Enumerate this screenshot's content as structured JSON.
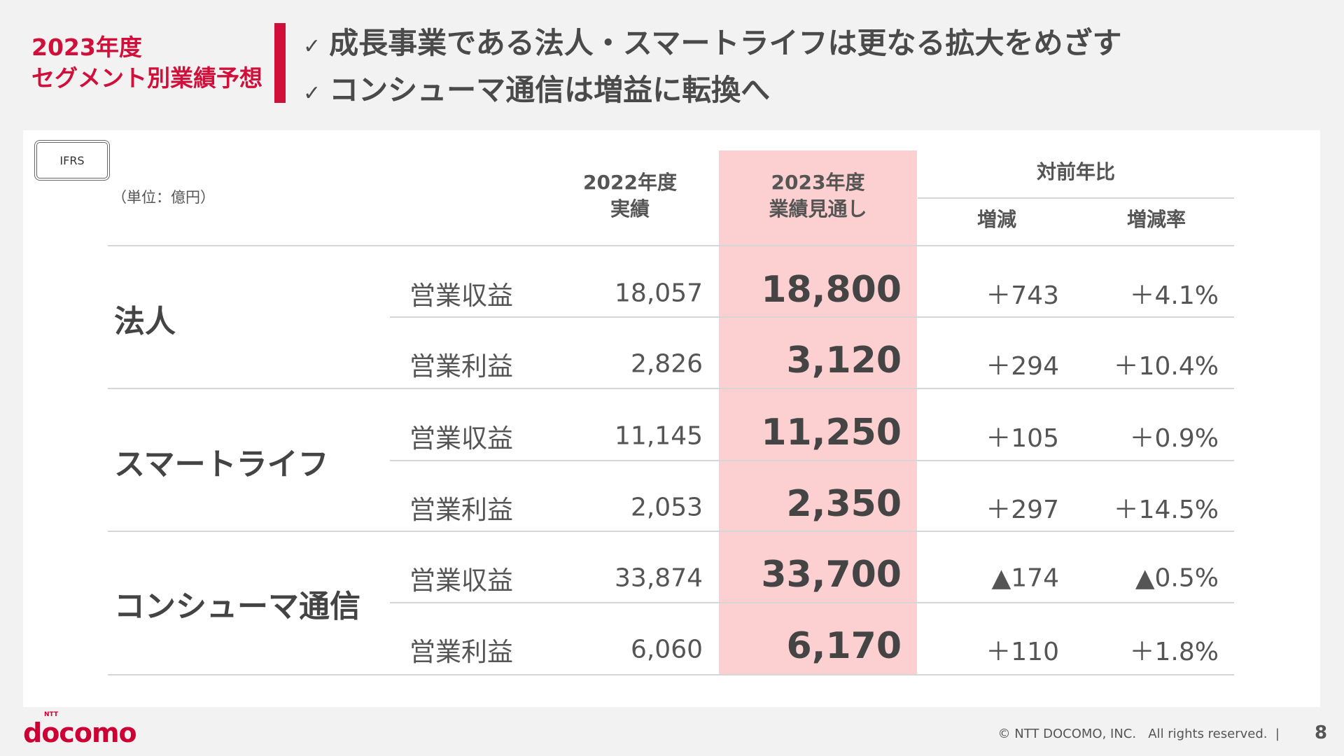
{
  "section_title": [
    "2023年度",
    "セグメント別業績予想"
  ],
  "headlines": [
    "成長事業である法人・スマートライフは更なる拡大をめざす",
    "コンシューマ通信は増益に転換へ"
  ],
  "check_glyph": "✓",
  "badge": "IFRS",
  "unit": "（単位：億円）",
  "columns": {
    "fy2022": [
      "2022年度",
      "実績"
    ],
    "fy2023": [
      "2023年度",
      "業績見通し"
    ],
    "yoy": "対前年比",
    "diff": "増減",
    "rate": "増減率"
  },
  "segments": [
    {
      "name": "法人",
      "rows": [
        {
          "item": "営業収益",
          "fy2022": "18,057",
          "fy2023": "18,800",
          "diff": "＋743",
          "rate": "＋4.1%"
        },
        {
          "item": "営業利益",
          "fy2022": "2,826",
          "fy2023": "3,120",
          "diff": "＋294",
          "rate": "＋10.4%"
        }
      ]
    },
    {
      "name": "スマートライフ",
      "rows": [
        {
          "item": "営業収益",
          "fy2022": "11,145",
          "fy2023": "11,250",
          "diff": "＋105",
          "rate": "＋0.9%"
        },
        {
          "item": "営業利益",
          "fy2022": "2,053",
          "fy2023": "2,350",
          "diff": "＋297",
          "rate": "＋14.5%"
        }
      ]
    },
    {
      "name": "コンシューマ通信",
      "rows": [
        {
          "item": "営業収益",
          "fy2022": "33,874",
          "fy2023": "33,700",
          "diff": "▲174",
          "rate": "▲0.5%"
        },
        {
          "item": "営業利益",
          "fy2022": "6,060",
          "fy2023": "6,170",
          "diff": "＋110",
          "rate": "＋1.8%"
        }
      ]
    }
  ],
  "footer": {
    "logo": "docomo",
    "logo_small": "NTT",
    "copyright": "© NTT DOCOMO, INC.   All rights reserved.  |",
    "page": "8"
  },
  "colors": {
    "accent": "#d0103a",
    "highlight": "#fccfd0"
  }
}
